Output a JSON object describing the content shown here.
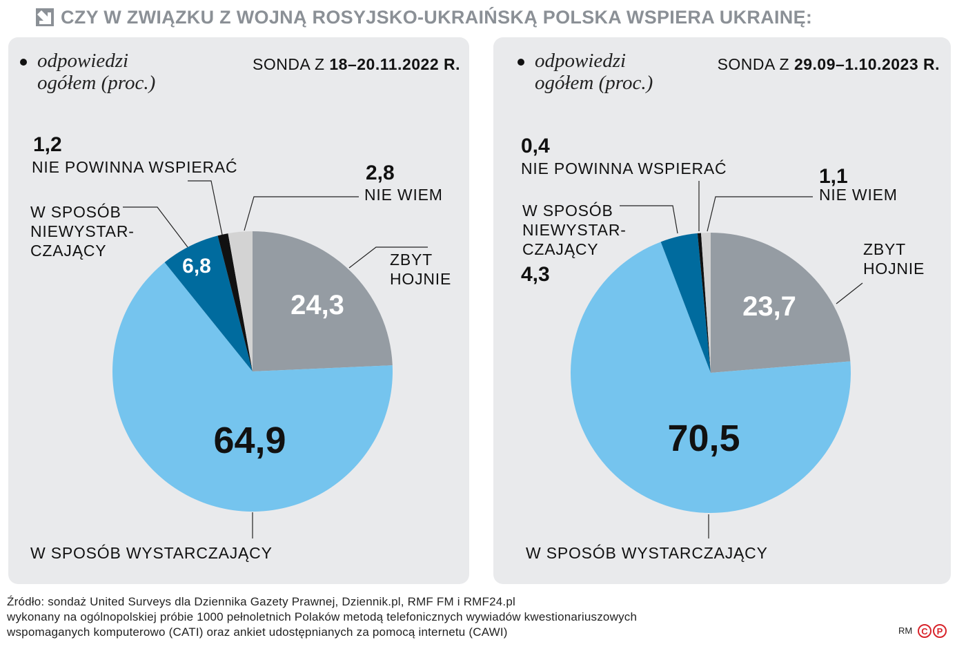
{
  "title": "CZY W ZWIĄZKU Z WOJNĄ ROSYJSKO-UKRAIŃSKĄ POLSKA WSPIERA UKRAINĘ:",
  "chart_data": [
    {
      "type": "pie",
      "subtitle": "odpowiedzi\nogółem (proc.)",
      "survey_label": "SONDA Z",
      "survey_date": "18–20.11.2022 R.",
      "categories": [
        "ZBYT\nHOJNIE",
        "W SPOSÓB WYSTARCZAJĄCY",
        "W SPOSÓB\nNIEWYSTAR-\nCZAJĄCY",
        "NIE POWINNA WSPIERAĆ",
        "NIE WIEM"
      ],
      "values": [
        24.3,
        64.9,
        6.8,
        1.2,
        2.8
      ],
      "value_labels": [
        "24,3",
        "64,9",
        "6,8",
        "1,2",
        "2,8"
      ],
      "colors": [
        "#959ca3",
        "#75c4ee",
        "#006b9e",
        "#111111",
        "#d3d3d3"
      ]
    },
    {
      "type": "pie",
      "subtitle": "odpowiedzi\nogółem (proc.)",
      "survey_label": "SONDA Z",
      "survey_date": "29.09–1.10.2023 R.",
      "categories": [
        "ZBYT\nHOJNIE",
        "W SPOSÓB WYSTARCZAJĄCY",
        "W SPOSÓB\nNIEWYSTAR-\nCZAJĄCY",
        "NIE POWINNA WSPIERAĆ",
        "NIE WIEM"
      ],
      "values": [
        23.7,
        70.5,
        4.3,
        0.4,
        1.1
      ],
      "value_labels": [
        "23,7",
        "70,5",
        "4,3",
        "0,4",
        "1,1"
      ],
      "colors": [
        "#959ca3",
        "#75c4ee",
        "#006b9e",
        "#111111",
        "#d3d3d3"
      ]
    }
  ],
  "source_lines": [
    "Źródło: sondaż United Surveys dla Dziennika Gazety Prawnej, Dziennik.pl, RMF FM i RMF24.pl",
    "wykonany na ogólnopolskiej próbie 1000 pełnoletnich Polaków metodą telefonicznych wywiadów kwestionariuszowych",
    "wspomaganych komputerowo (CATI) oraz ankiet udostępnianych za pomocą internetu (CAWI)"
  ],
  "credit": "RM",
  "logo_letters": [
    "C",
    "P"
  ]
}
